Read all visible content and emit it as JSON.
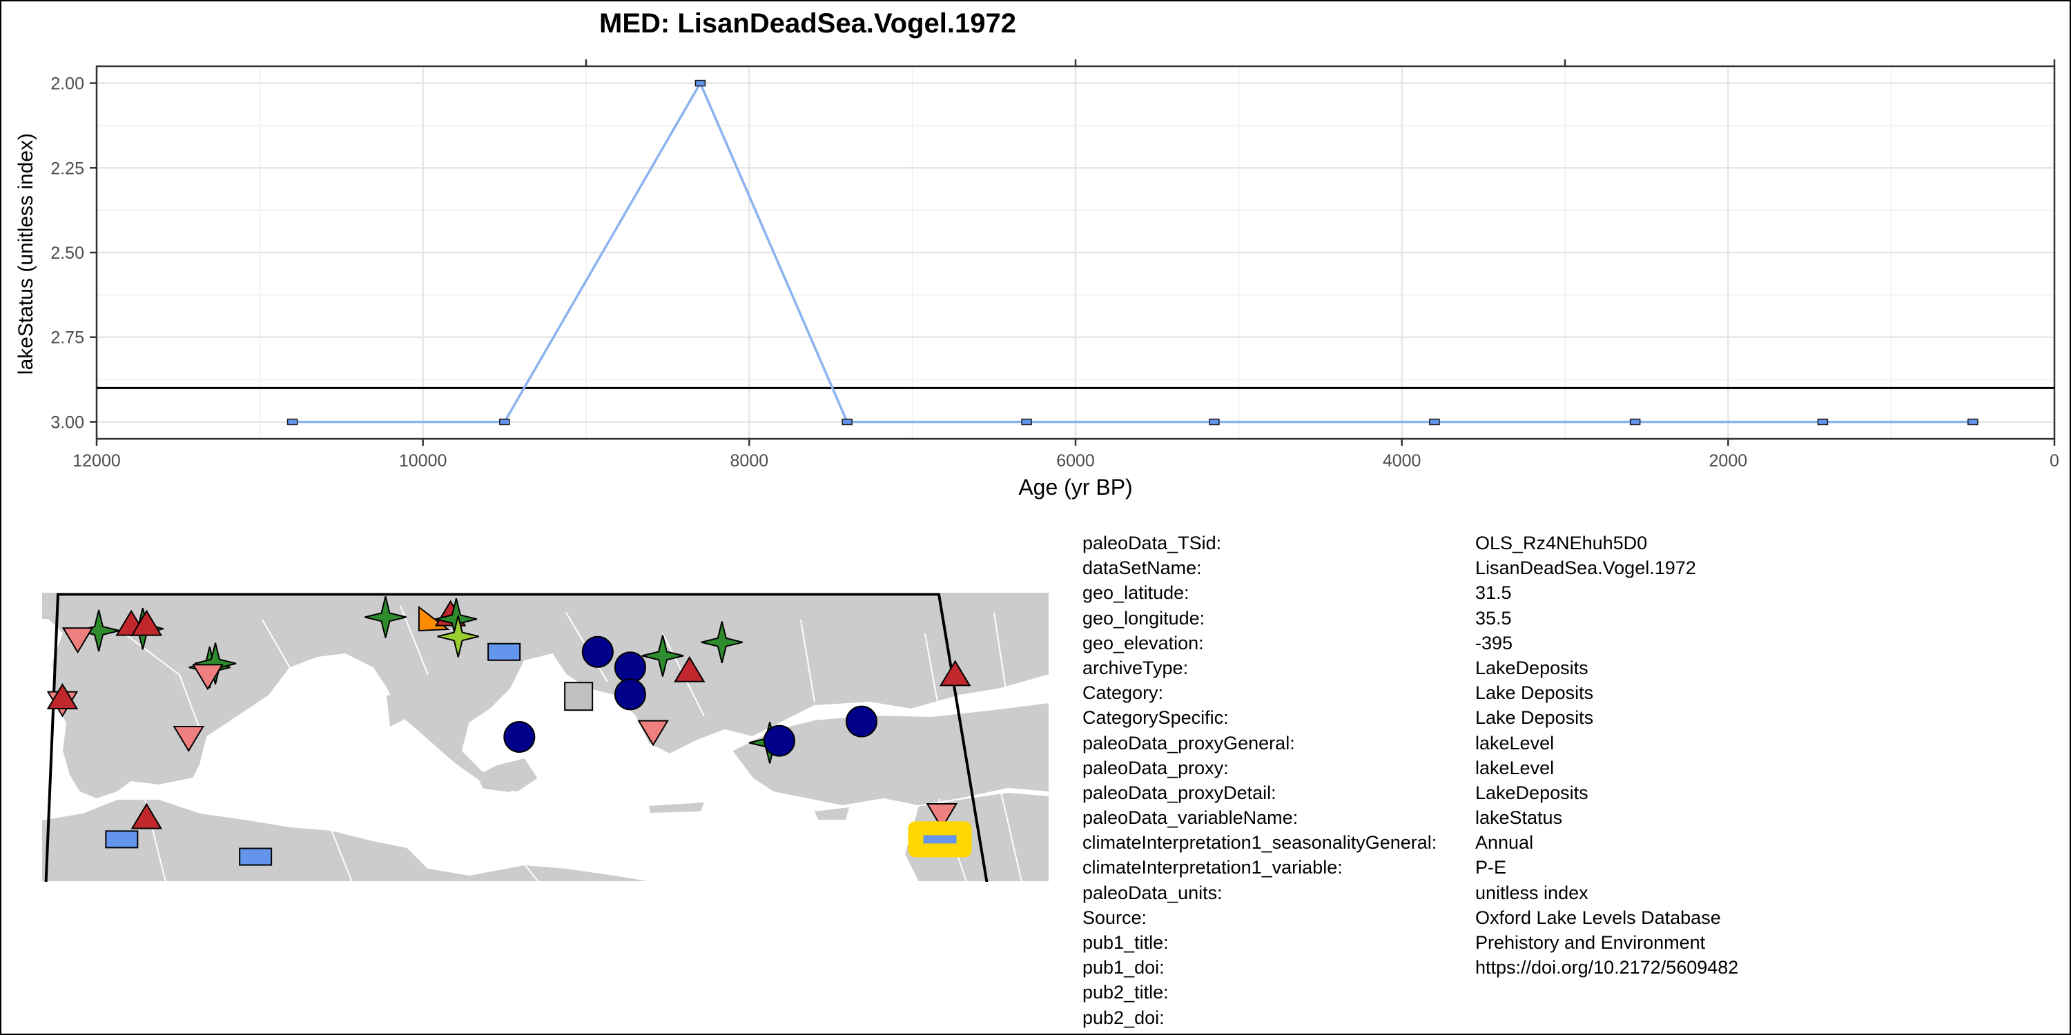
{
  "chart_data": {
    "type": "line",
    "title": "MED: LisanDeadSea.Vogel.1972",
    "xlabel": "Age (yr BP)",
    "ylabel": "lakeStatus (unitless index)",
    "xlim": [
      12000,
      0
    ],
    "ylim": [
      3.05,
      1.95
    ],
    "reverse_y": true,
    "x_ticks": [
      12000,
      10000,
      8000,
      6000,
      4000,
      2000,
      0
    ],
    "y_ticks": [
      2.0,
      2.25,
      2.5,
      2.75,
      3.0
    ],
    "x_tick_labels": [
      "12000",
      "10000",
      "8000",
      "6000",
      "4000",
      "2000",
      "0"
    ],
    "y_tick_labels": [
      "2.00",
      "2.25",
      "2.50",
      "2.75",
      "3.00"
    ],
    "reference_line_y": 2.9,
    "grid": true,
    "series": [
      {
        "color": "#8ab4ef",
        "x": [
          10800,
          9500,
          8300,
          7400,
          6300,
          5150,
          3800,
          2570,
          1420,
          500
        ],
        "y": [
          3,
          3,
          2,
          3,
          3,
          3,
          3,
          3,
          3,
          3
        ]
      }
    ]
  },
  "map": {
    "markers": [
      {
        "shape": "star",
        "color": "#2e8b2e",
        "lon": -8.5,
        "lat": 42.3
      },
      {
        "shape": "star",
        "color": "#2e8b2e",
        "lon": -6.2,
        "lat": 42.4
      },
      {
        "shape": "tri-up",
        "color": "#c0282d",
        "lon": -6.8,
        "lat": 42.6
      },
      {
        "shape": "tri-up",
        "color": "#c0282d",
        "lon": -6.0,
        "lat": 42.6
      },
      {
        "shape": "tri-down",
        "color": "#f08080",
        "lon": -9.6,
        "lat": 41.9
      },
      {
        "shape": "tri-down",
        "color": "#f08080",
        "lon": -10.4,
        "lat": 38.6
      },
      {
        "shape": "tri-up",
        "color": "#c0282d",
        "lon": -10.4,
        "lat": 38.8
      },
      {
        "shape": "star",
        "color": "#2e8b2e",
        "lon": -2.7,
        "lat": 40.4
      },
      {
        "shape": "star",
        "color": "#2e8b2e",
        "lon": -2.4,
        "lat": 40.6
      },
      {
        "shape": "tri-down",
        "color": "#f08080",
        "lon": -2.8,
        "lat": 40.0
      },
      {
        "shape": "tri-down",
        "color": "#f08080",
        "lon": -3.8,
        "lat": 36.8
      },
      {
        "shape": "tri-up",
        "color": "#c0282d",
        "lon": -6.0,
        "lat": 32.6
      },
      {
        "shape": "rect",
        "color": "#6495ed",
        "lon": -7.3,
        "lat": 31.5
      },
      {
        "shape": "rect",
        "color": "#6495ed",
        "lon": -0.3,
        "lat": 30.6
      },
      {
        "shape": "star",
        "color": "#2e8b2e",
        "lon": 6.5,
        "lat": 43.0
      },
      {
        "shape": "tri-right",
        "color": "#ff8c00",
        "lon": 8.9,
        "lat": 42.8
      },
      {
        "shape": "tri-up",
        "color": "#c0282d",
        "lon": 9.9,
        "lat": 43.1
      },
      {
        "shape": "star",
        "color": "#2e8b2e",
        "lon": 10.2,
        "lat": 42.9
      },
      {
        "shape": "star",
        "color": "#9acd32",
        "lon": 10.3,
        "lat": 42.0
      },
      {
        "shape": "rect",
        "color": "#6495ed",
        "lon": 12.7,
        "lat": 41.2
      },
      {
        "shape": "circle",
        "color": "#00008b",
        "lon": 13.5,
        "lat": 36.8
      },
      {
        "shape": "square",
        "color": "#c0c0c0",
        "lon": 16.6,
        "lat": 38.9
      },
      {
        "shape": "circle",
        "color": "#00008b",
        "lon": 17.6,
        "lat": 41.2
      },
      {
        "shape": "circle",
        "color": "#00008b",
        "lon": 19.3,
        "lat": 40.4
      },
      {
        "shape": "circle",
        "color": "#00008b",
        "lon": 19.3,
        "lat": 39.0
      },
      {
        "shape": "tri-down",
        "color": "#f08080",
        "lon": 20.5,
        "lat": 37.1
      },
      {
        "shape": "star",
        "color": "#2e8b2e",
        "lon": 21.0,
        "lat": 41.0
      },
      {
        "shape": "tri-up",
        "color": "#c0282d",
        "lon": 22.4,
        "lat": 40.2
      },
      {
        "shape": "star",
        "color": "#2e8b2e",
        "lon": 24.1,
        "lat": 41.7
      },
      {
        "shape": "star",
        "color": "#2e8b2e",
        "lon": 26.6,
        "lat": 36.5
      },
      {
        "shape": "circle",
        "color": "#00008b",
        "lon": 27.1,
        "lat": 36.6
      },
      {
        "shape": "circle",
        "color": "#00008b",
        "lon": 31.4,
        "lat": 37.6
      },
      {
        "shape": "tri-up",
        "color": "#c0282d",
        "lon": 36.3,
        "lat": 40.0
      },
      {
        "shape": "tri-down",
        "color": "#f08080",
        "lon": 35.6,
        "lat": 32.8
      },
      {
        "shape": "rect",
        "color": "#6495ed",
        "lon": 35.5,
        "lat": 31.5,
        "highlight": "#ffd700"
      }
    ]
  },
  "metadata": [
    {
      "key": "paleoData_TSid:",
      "value": "OLS_Rz4NEhuh5D0"
    },
    {
      "key": "dataSetName:",
      "value": "LisanDeadSea.Vogel.1972"
    },
    {
      "key": "geo_latitude:",
      "value": "31.5"
    },
    {
      "key": "geo_longitude:",
      "value": "35.5"
    },
    {
      "key": "geo_elevation:",
      "value": "-395"
    },
    {
      "key": "archiveType:",
      "value": "LakeDeposits"
    },
    {
      "key": "Category:",
      "value": "Lake Deposits"
    },
    {
      "key": "CategorySpecific:",
      "value": "Lake Deposits"
    },
    {
      "key": "paleoData_proxyGeneral:",
      "value": "lakeLevel"
    },
    {
      "key": "paleoData_proxy:",
      "value": "lakeLevel"
    },
    {
      "key": "paleoData_proxyDetail:",
      "value": "LakeDeposits"
    },
    {
      "key": "paleoData_variableName:",
      "value": "lakeStatus"
    },
    {
      "key": "climateInterpretation1_seasonalityGeneral:",
      "value": "Annual"
    },
    {
      "key": "climateInterpretation1_variable:",
      "value": "P-E"
    },
    {
      "key": "paleoData_units:",
      "value": "unitless index"
    },
    {
      "key": "Source:",
      "value": "Oxford Lake Levels Database"
    },
    {
      "key": "pub1_title:",
      "value": "Prehistory and Environment"
    },
    {
      "key": "pub1_doi:",
      "value": "https://doi.org/10.2172/5609482"
    },
    {
      "key": "pub2_title:",
      "value": ""
    },
    {
      "key": "pub2_doi:",
      "value": ""
    }
  ]
}
